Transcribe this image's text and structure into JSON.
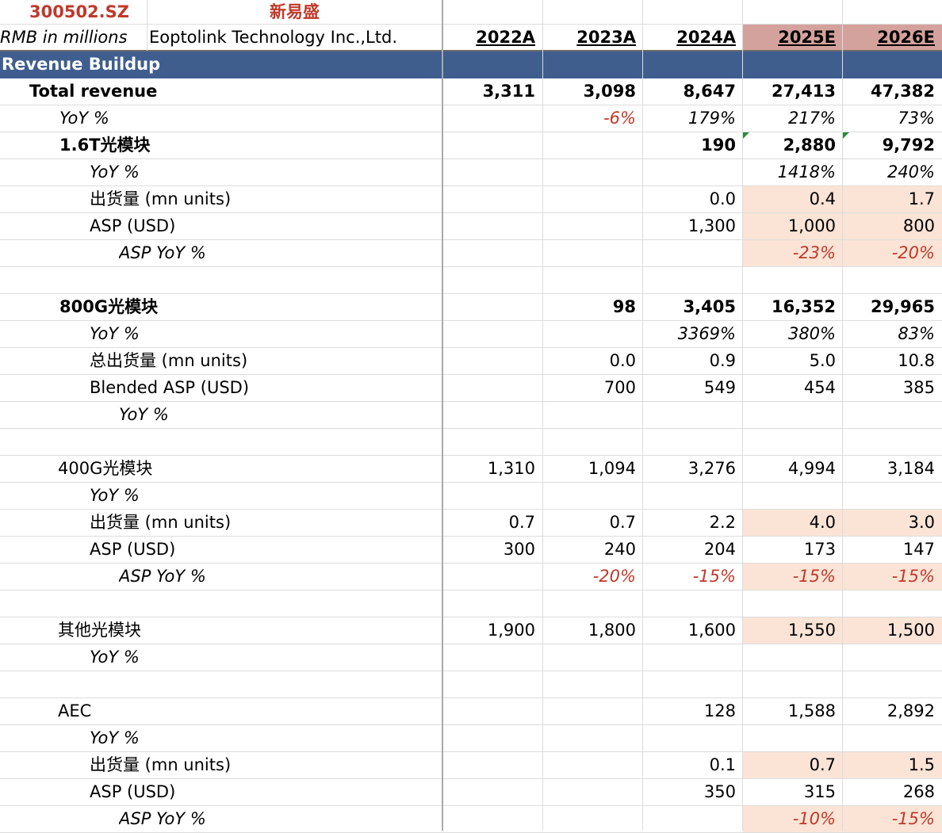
{
  "header": {
    "ticker": "300502.SZ",
    "company_cn": "新易盛",
    "units": "RMB in millions",
    "company_en": "Eoptolink Technology Inc.,Ltd.",
    "years": [
      "2022A",
      "2023A",
      "2024A",
      "2025E",
      "2026E"
    ]
  },
  "section_title": "Revenue Buildup",
  "rows": [
    {
      "label": "Total revenue",
      "values": [
        "3,311",
        "3,098",
        "8,647",
        "27,413",
        "47,382"
      ]
    },
    {
      "label": "YoY %",
      "values": [
        "",
        "-6%",
        "179%",
        "217%",
        "73%"
      ]
    },
    {
      "label": "1.6T光模块",
      "values": [
        "",
        "",
        "190",
        "2,880",
        "9,792"
      ]
    },
    {
      "label": "YoY %",
      "values": [
        "",
        "",
        "",
        "1418%",
        "240%"
      ]
    },
    {
      "label": "出货量 (mn units)",
      "values": [
        "",
        "",
        "0.0",
        "0.4",
        "1.7"
      ]
    },
    {
      "label": "ASP (USD)",
      "values": [
        "",
        "",
        "1,300",
        "1,000",
        "800"
      ]
    },
    {
      "label": "ASP YoY %",
      "values": [
        "",
        "",
        "",
        "-23%",
        "-20%"
      ]
    },
    {
      "label": "",
      "values": [
        "",
        "",
        "",
        "",
        ""
      ]
    },
    {
      "label": "800G光模块",
      "values": [
        "",
        "98",
        "3,405",
        "16,352",
        "29,965"
      ]
    },
    {
      "label": "YoY %",
      "values": [
        "",
        "",
        "3369%",
        "380%",
        "83%"
      ]
    },
    {
      "label": "总出货量 (mn units)",
      "values": [
        "",
        "0.0",
        "0.9",
        "5.0",
        "10.8"
      ]
    },
    {
      "label": "Blended ASP (USD)",
      "values": [
        "",
        "700",
        "549",
        "454",
        "385"
      ]
    },
    {
      "label": "YoY %",
      "values": [
        "",
        "",
        "",
        "",
        ""
      ]
    },
    {
      "label": "",
      "values": [
        "",
        "",
        "",
        "",
        ""
      ]
    },
    {
      "label": "400G光模块",
      "values": [
        "1,310",
        "1,094",
        "3,276",
        "4,994",
        "3,184"
      ]
    },
    {
      "label": "YoY %",
      "values": [
        "",
        "",
        "",
        "",
        ""
      ]
    },
    {
      "label": "出货量 (mn units)",
      "values": [
        "0.7",
        "0.7",
        "2.2",
        "4.0",
        "3.0"
      ]
    },
    {
      "label": "ASP (USD)",
      "values": [
        "300",
        "240",
        "204",
        "173",
        "147"
      ]
    },
    {
      "label": "ASP YoY %",
      "values": [
        "",
        "-20%",
        "-15%",
        "-15%",
        "-15%"
      ]
    },
    {
      "label": "",
      "values": [
        "",
        "",
        "",
        "",
        ""
      ]
    },
    {
      "label": "其他光模块",
      "values": [
        "1,900",
        "1,800",
        "1,600",
        "1,550",
        "1,500"
      ]
    },
    {
      "label": "YoY %",
      "values": [
        "",
        "",
        "",
        "",
        ""
      ]
    },
    {
      "label": "",
      "values": [
        "",
        "",
        "",
        "",
        ""
      ]
    },
    {
      "label": "AEC",
      "values": [
        "",
        "",
        "128",
        "1,588",
        "2,892"
      ]
    },
    {
      "label": "YoY %",
      "values": [
        "",
        "",
        "",
        "",
        ""
      ]
    },
    {
      "label": "出货量 (mn units)",
      "values": [
        "",
        "",
        "0.1",
        "0.7",
        "1.5"
      ]
    },
    {
      "label": "ASP (USD)",
      "values": [
        "",
        "",
        "350",
        "315",
        "268"
      ]
    },
    {
      "label": "ASP YoY %",
      "values": [
        "",
        "",
        "",
        "-10%",
        "-15%"
      ]
    }
  ],
  "colors": {
    "section_bg": "#3f5e8e",
    "estimate_header_bg": "#d4a29c",
    "input_highlight_bg": "#fbe4d6",
    "negative_text": "#c0392b",
    "ticker_text": "#c0392b"
  }
}
